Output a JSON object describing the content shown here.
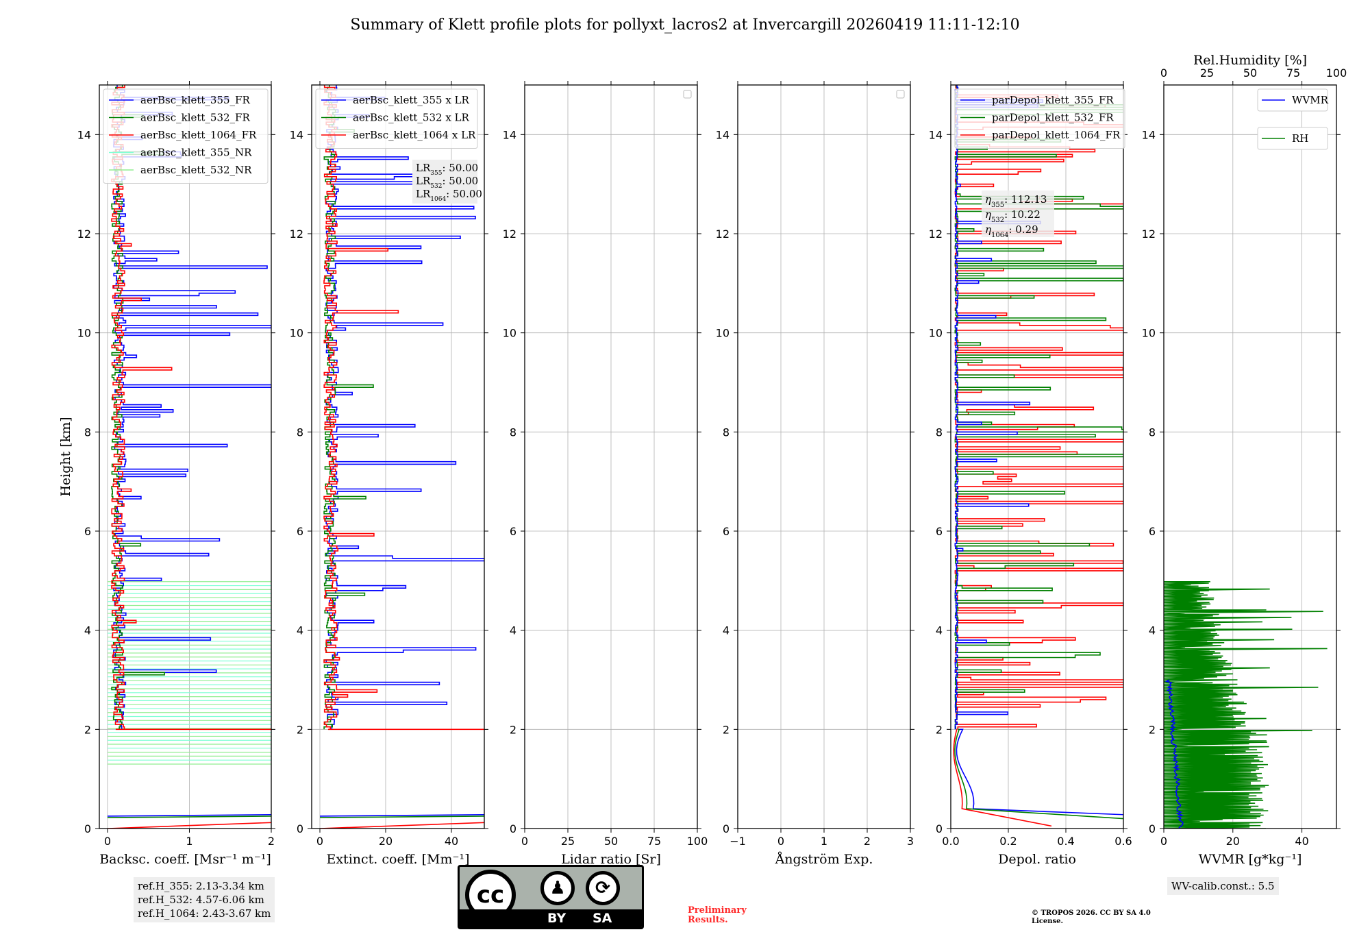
{
  "title": "Summary of Klett profile plots for pollyxt_lacros2 at Invercargill 20260419 11:11-12:10",
  "colors": {
    "c355": "#0000ff",
    "c532": "#008000",
    "c1064": "#ff0000",
    "nr355": "#7fffd4",
    "nr532": "#90ee90",
    "grid": "#b0b0b0"
  },
  "chart_data": [
    {
      "type": "line",
      "id": "bsc",
      "xlabel": "Backsc. coeff. [Msr⁻¹ m⁻¹]",
      "ylabel": "Height [km]",
      "xlim": [
        -0.1,
        2
      ],
      "ylim": [
        0,
        15
      ],
      "xticks": [
        0,
        1,
        2
      ],
      "xticklabels": [
        "0",
        "1",
        "2"
      ],
      "yticks": [
        0,
        2,
        4,
        6,
        8,
        10,
        12,
        14
      ],
      "legend": {
        "loc": "top-left",
        "entries": [
          {
            "label": "aerBsc_klett_355_FR",
            "color": "#0000ff"
          },
          {
            "label": "aerBsc_klett_532_FR",
            "color": "#008000"
          },
          {
            "label": "aerBsc_klett_1064_FR",
            "color": "#ff0000"
          },
          {
            "label": "aerBsc_klett_355_NR",
            "color": "#7fffd4"
          },
          {
            "label": "aerBsc_klett_532_NR",
            "color": "#90ee90"
          }
        ]
      }
    },
    {
      "type": "line",
      "id": "ext",
      "xlabel": "Extinct. coeff. [Mm⁻¹]",
      "xlim": [
        -2.5,
        50
      ],
      "ylim": [
        0,
        15
      ],
      "xticks": [
        0,
        20,
        40
      ],
      "xticklabels": [
        "0",
        "20",
        "40"
      ],
      "yticks": [
        0,
        2,
        4,
        6,
        8,
        10,
        12,
        14
      ],
      "legend": {
        "loc": "top-left",
        "entries": [
          {
            "label": "aerBsc_klett_355 x LR",
            "color": "#0000ff"
          },
          {
            "label": "aerBsc_klett_532 x LR",
            "color": "#008000"
          },
          {
            "label": "aerBsc_klett_1064 x LR",
            "color": "#ff0000"
          }
        ]
      },
      "lidar_ratios": [
        {
          "sub": "355",
          "value": "50.00"
        },
        {
          "sub": "532",
          "value": "50.00"
        },
        {
          "sub": "1064",
          "value": "50.00"
        }
      ]
    },
    {
      "type": "line",
      "id": "lr",
      "xlabel": "Lidar ratio [Sr]",
      "xlim": [
        0,
        100
      ],
      "ylim": [
        0,
        15
      ],
      "xticks": [
        0,
        25,
        50,
        75,
        100
      ],
      "xticklabels": [
        "0",
        "25",
        "50",
        "75",
        "100"
      ],
      "yticks": [
        0,
        2,
        4,
        6,
        8,
        10,
        12,
        14
      ]
    },
    {
      "type": "line",
      "id": "ang",
      "xlabel": "Ångström Exp.",
      "xlim": [
        -1,
        3
      ],
      "ylim": [
        0,
        15
      ],
      "xticks": [
        -1,
        0,
        1,
        2,
        3
      ],
      "xticklabels": [
        "−1",
        "0",
        "1",
        "2",
        "3"
      ],
      "yticks": [
        0,
        2,
        4,
        6,
        8,
        10,
        12,
        14
      ]
    },
    {
      "type": "line",
      "id": "depol",
      "xlabel": "Depol. ratio",
      "xlim": [
        0,
        0.6
      ],
      "ylim": [
        0,
        15
      ],
      "xticks": [
        0,
        0.2,
        0.4,
        0.6
      ],
      "xticklabels": [
        "0.0",
        "0.2",
        "0.4",
        "0.6"
      ],
      "yticks": [
        0,
        2,
        4,
        6,
        8,
        10,
        12,
        14
      ],
      "legend": {
        "loc": "top-left",
        "entries": [
          {
            "label": "parDepol_klett_355_FR",
            "color": "#0000ff"
          },
          {
            "label": "parDepol_klett_532_FR",
            "color": "#008000"
          },
          {
            "label": "parDepol_klett_1064_FR",
            "color": "#ff0000"
          }
        ]
      },
      "eta": [
        {
          "sub": "355",
          "value": "112.13"
        },
        {
          "sub": "532",
          "value": "10.22"
        },
        {
          "sub": "1064",
          "value": "0.29"
        }
      ]
    },
    {
      "type": "line",
      "id": "wv",
      "xlabel": "WVMR [g*kg⁻¹]",
      "x2label": "Rel.Humidity [%]",
      "xlim": [
        0,
        50
      ],
      "x2lim": [
        0,
        100
      ],
      "ylim": [
        0,
        15
      ],
      "xticks": [
        0,
        20,
        40
      ],
      "xticklabels": [
        "0",
        "20",
        "40"
      ],
      "x2ticks": [
        0,
        25,
        50,
        75,
        100
      ],
      "x2ticklabels": [
        "0",
        "25",
        "50",
        "75",
        "100"
      ],
      "yticks": [
        0,
        2,
        4,
        6,
        8,
        10,
        12,
        14
      ],
      "legend": {
        "entries": [
          {
            "label": "WVMR",
            "color": "#0000ff"
          },
          {
            "label": "RH",
            "color": "#008000"
          }
        ]
      }
    }
  ],
  "ref_heights": [
    "ref.H_355: 2.13-3.34 km",
    "ref.H_532: 4.57-6.06 km",
    "ref.H_1064: 2.43-3.67 km"
  ],
  "wv_calib": "WV-calib.const.: 5.5",
  "license_logo": {
    "cc": "cc",
    "by": "BY",
    "sa": "SA"
  },
  "preliminary": "Preliminary Results.",
  "copyright": "© TROPOS 2026. CC BY SA 4.0 License."
}
